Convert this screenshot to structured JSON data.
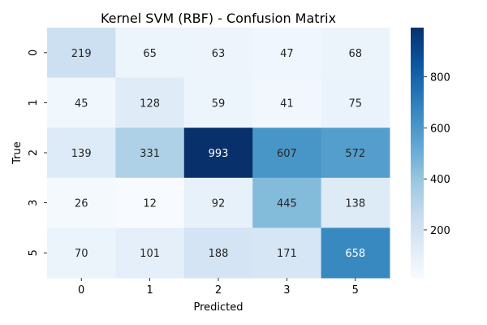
{
  "chart_data": {
    "type": "heatmap",
    "title": "Kernel SVM (RBF) - Confusion Matrix",
    "xlabel": "Predicted",
    "ylabel": "True",
    "x_categories": [
      "0",
      "1",
      "2",
      "3",
      "5"
    ],
    "y_categories": [
      "0",
      "1",
      "2",
      "3",
      "5"
    ],
    "values": [
      [
        219,
        65,
        63,
        47,
        68
      ],
      [
        45,
        128,
        59,
        41,
        75
      ],
      [
        139,
        331,
        993,
        607,
        572
      ],
      [
        26,
        12,
        92,
        445,
        138
      ],
      [
        70,
        101,
        188,
        171,
        658
      ]
    ],
    "colormap": "Blues",
    "color_range": [
      12,
      993
    ],
    "colorbar_ticks": [
      200,
      400,
      600,
      800
    ],
    "grid": false
  }
}
